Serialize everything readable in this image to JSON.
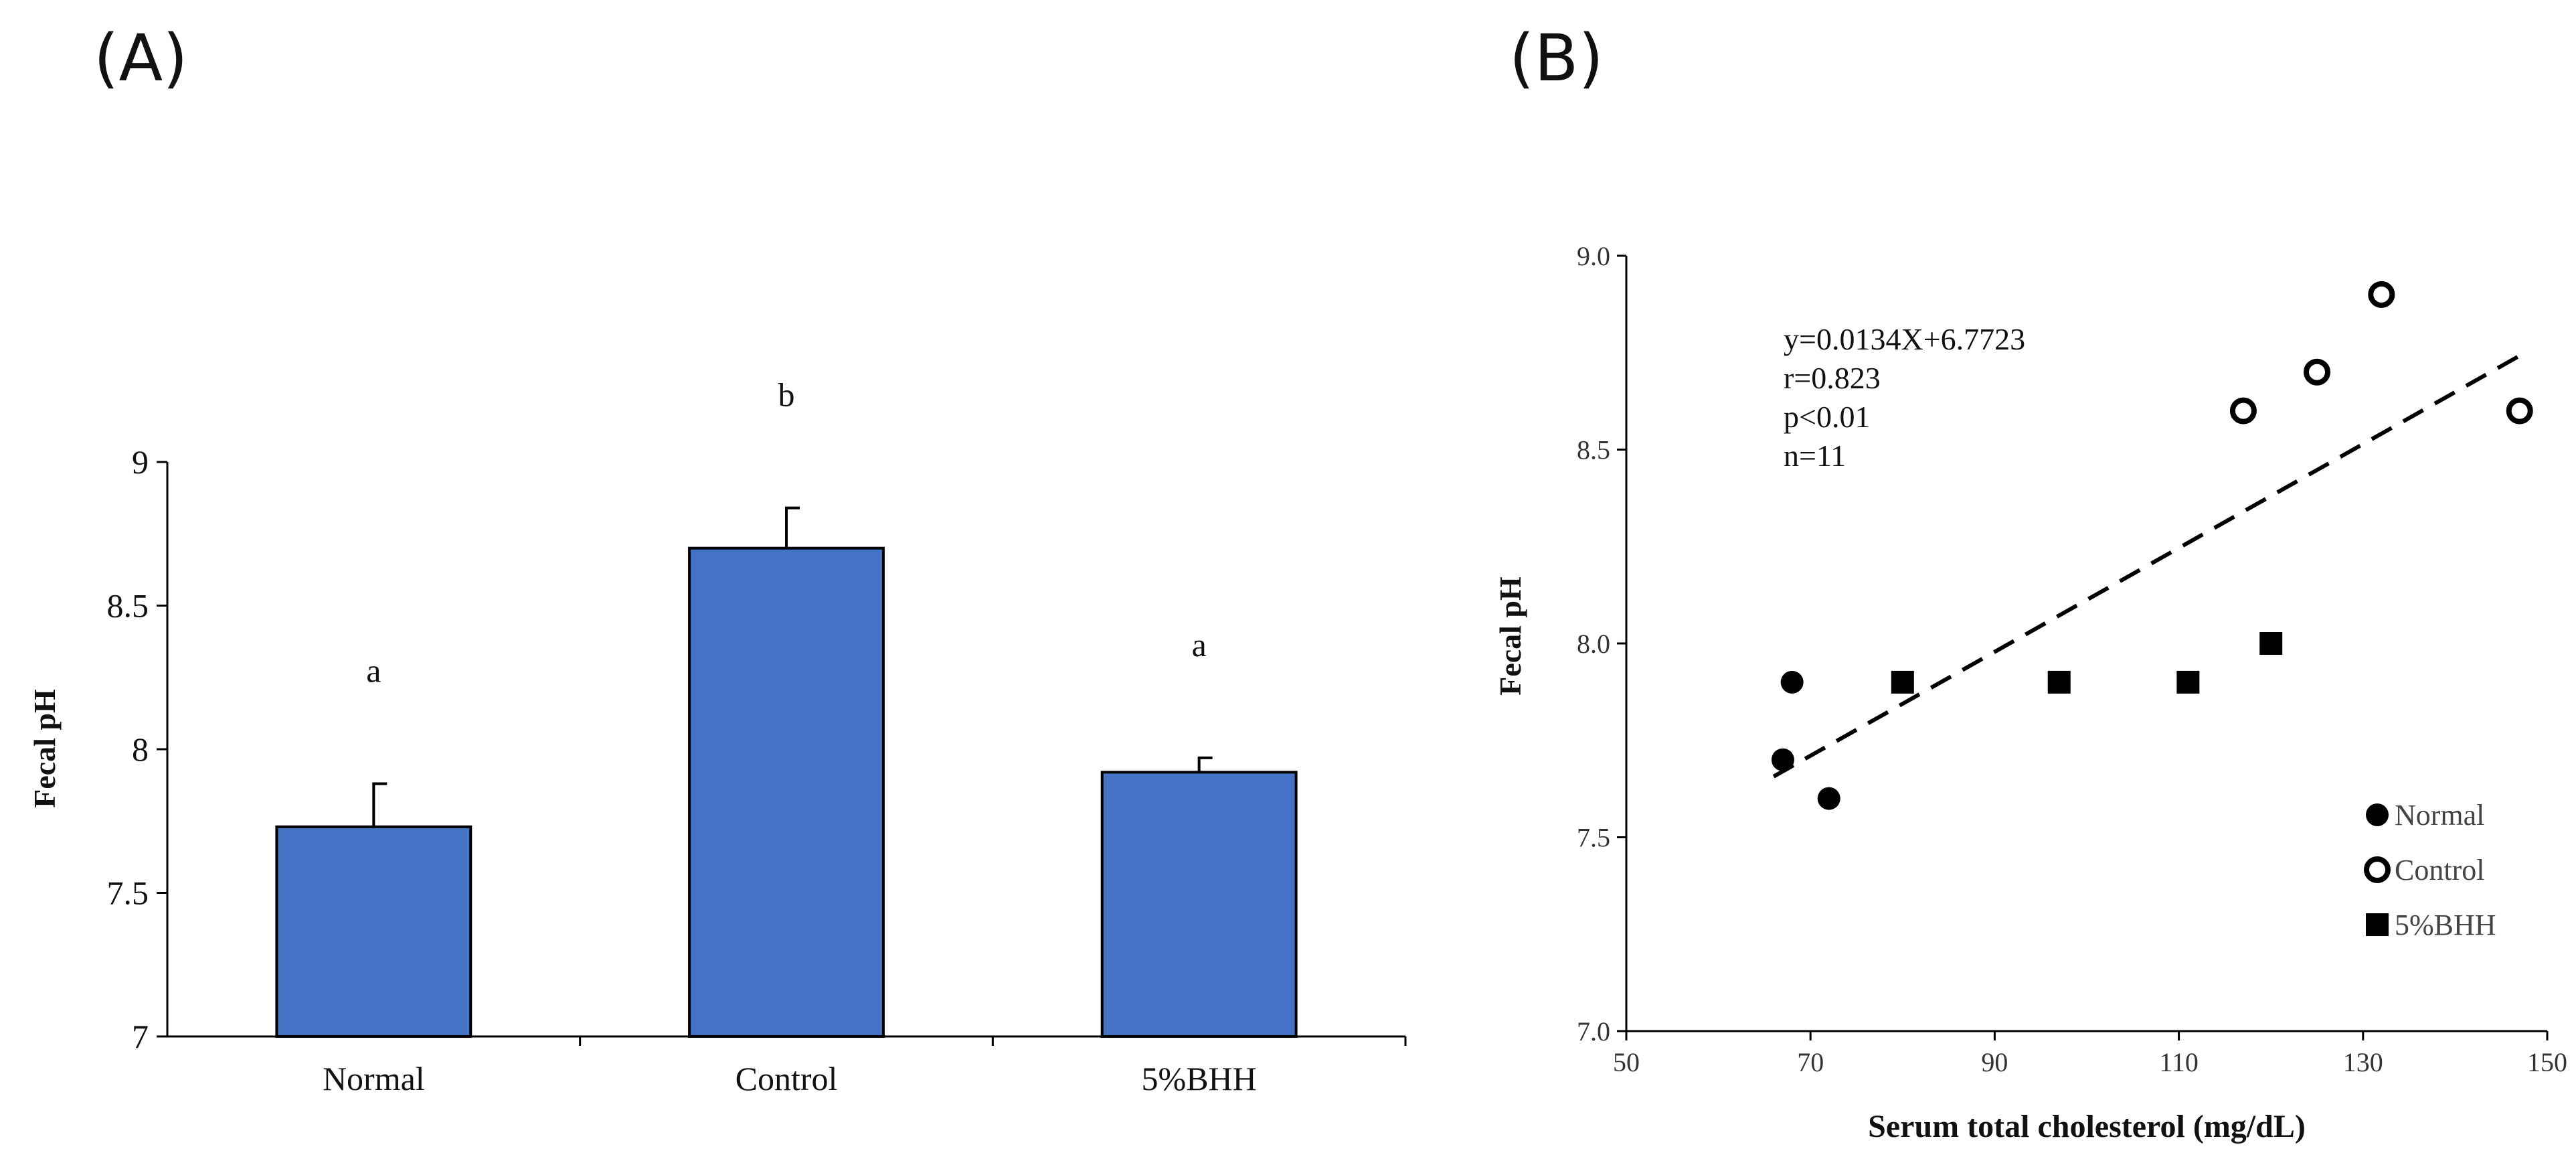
{
  "colors": {
    "bar": "#4472C4",
    "axis": "#000000",
    "marker": "#000000"
  },
  "chart_data": [
    {
      "type": "bar",
      "panel_label": "(A)",
      "categories": [
        "Normal",
        "Control",
        "5%BHH"
      ],
      "values": [
        7.73,
        8.7,
        7.92
      ],
      "errors": [
        0.15,
        0.14,
        0.05
      ],
      "significance": [
        "a",
        "b",
        "a"
      ],
      "ylabel": "Fecal pH",
      "xlabel": "",
      "ylim": [
        7,
        9
      ],
      "yticks": [
        "7",
        "7.5",
        "8",
        "8.5",
        "9"
      ],
      "grid": false
    },
    {
      "type": "scatter",
      "panel_label": "(B)",
      "xlabel": "Serum total cholesterol (mg/dL)",
      "ylabel": "Fecal pH",
      "xlim": [
        50,
        150
      ],
      "ylim": [
        7.0,
        9.0
      ],
      "xticks": [
        "50",
        "70",
        "90",
        "110",
        "130",
        "150"
      ],
      "yticks": [
        "7.0",
        "7.5",
        "8.0",
        "8.5",
        "9.0"
      ],
      "series": [
        {
          "name": "Normal",
          "marker": "filled-circle",
          "points": [
            [
              67,
              7.7
            ],
            [
              68,
              7.9
            ],
            [
              72,
              7.6
            ]
          ]
        },
        {
          "name": "Control",
          "marker": "open-circle",
          "points": [
            [
              117,
              8.6
            ],
            [
              125,
              8.7
            ],
            [
              132,
              8.9
            ],
            [
              147,
              8.6
            ]
          ]
        },
        {
          "name": "5%BHH",
          "marker": "filled-square",
          "points": [
            [
              80,
              7.9
            ],
            [
              97,
              7.9
            ],
            [
              111,
              7.9
            ],
            [
              120,
              8.0
            ]
          ]
        }
      ],
      "trendline": {
        "slope": 0.0134,
        "intercept": 6.7723,
        "x_range": [
          66,
          147
        ],
        "style": "dashed"
      },
      "stats": [
        "y=0.0134X+6.7723",
        "r=0.823",
        "p<0.01",
        "n=11"
      ],
      "legend_position": "bottom-right",
      "grid": false
    }
  ]
}
